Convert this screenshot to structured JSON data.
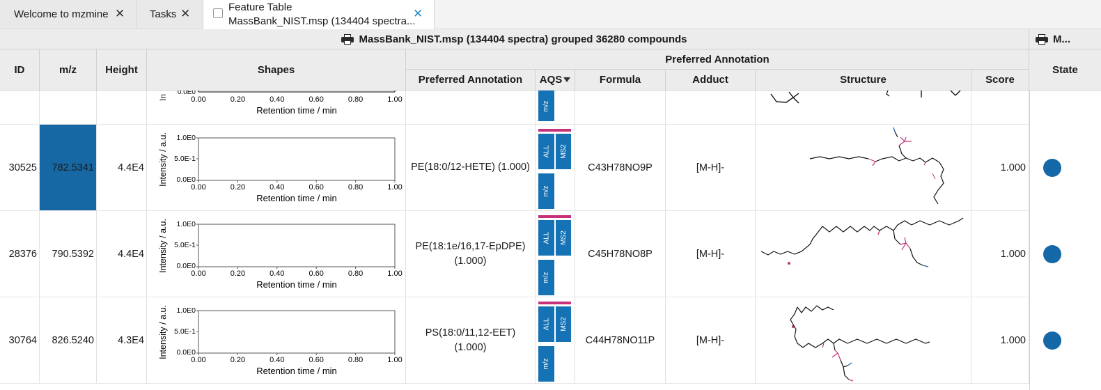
{
  "tabs": [
    {
      "label": "Welcome to mzmine"
    },
    {
      "label": "Tasks"
    },
    {
      "line1": "Feature Table",
      "line2": "MassBank_NIST.msp (134404 spectra..."
    }
  ],
  "table": {
    "group_header": "MassBank_NIST.msp (134404 spectra) grouped 36280 compounds",
    "group_header_right": "M...",
    "annotation_group": "Preferred Annotation",
    "columns": {
      "id": "ID",
      "mz": "m/z",
      "height": "Height",
      "shapes": "Shapes",
      "preferred": "Preferred Annotation",
      "aqs": "AQS",
      "formula": "Formula",
      "adduct": "Adduct",
      "structure": "Structure",
      "score": "Score",
      "state": "State"
    }
  },
  "plot_labels": {
    "ylabel": "Intensity / a.u.",
    "xlabel": "Retention time / min",
    "yticks": [
      "1.0E0",
      "5.0E-1",
      "0.0E0"
    ],
    "xticks": [
      "0.00",
      "0.20",
      "0.40",
      "0.60",
      "0.80",
      "1.00"
    ]
  },
  "aqs_labels": {
    "all": "ALL",
    "ms2": "MS2",
    "mz": "m/z"
  },
  "rows": [
    {
      "id": "30525",
      "mz": "782.5341",
      "height": "4.4E4",
      "annotation": "PE(18:0/12-HETE) (1.000)",
      "formula": "C43H78NO9P",
      "adduct": "[M-H]-",
      "score": "1.000",
      "selected": true
    },
    {
      "id": "28376",
      "mz": "790.5392",
      "height": "4.4E4",
      "annotation": "PE(18:1e/16,17-EpDPE) (1.000)",
      "formula": "C45H78NO8P",
      "adduct": "[M-H]-",
      "score": "1.000",
      "selected": false
    },
    {
      "id": "30764",
      "mz": "826.5240",
      "height": "4.3E4",
      "annotation": "PS(18:0/11,12-EET) (1.000)",
      "formula": "C44H78NO11P",
      "adduct": "[M-H]-",
      "score": "1.000",
      "selected": false
    }
  ],
  "colors": {
    "selected": "#1668a5",
    "aqs_blue": "#1573b5",
    "aqs_bar": "#c7317a",
    "state_dot": "#1468a8",
    "accent": "#1e88c8"
  }
}
